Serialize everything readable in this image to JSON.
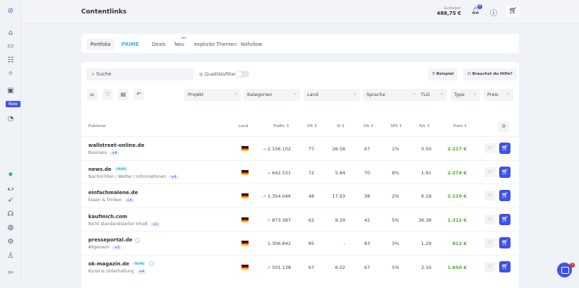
{
  "sidebar": {
    "new_badge": "New",
    "rating": "4.7",
    "icons": [
      "logo-icon",
      "home-icon",
      "folder-icon",
      "list-icon",
      "sparkle-icon",
      "chart-icon",
      "document-icon",
      "trustpilot-star-icon",
      "rocket-icon",
      "headset-icon",
      "globe-icon",
      "settings-icon",
      "user-icon",
      "logout-icon"
    ]
  },
  "header": {
    "title": "Contentlinks",
    "balance_label": "Guthaben",
    "balance": "488,75 €",
    "notifications": "0"
  },
  "tabs": [
    {
      "label": "Portfolio"
    },
    {
      "label": "PRIME"
    },
    {
      "label": "Deals"
    },
    {
      "label": "Neu",
      "badge": "NEU"
    },
    {
      "label": "explizite Themen"
    },
    {
      "label": "Nofollow"
    }
  ],
  "filters": {
    "search_placeholder": "Suche",
    "quality_filter": "Qualitätsfilter",
    "example": "Beispiel",
    "help": "Brauchst du Hilfe?",
    "dropdowns": [
      "Projekt",
      "Kategorien",
      "Land",
      "Sprache",
      "TLD",
      "Type",
      "Preis"
    ]
  },
  "table": {
    "headers": [
      "Publisher",
      "Land",
      "Traffic",
      "DR",
      "SI",
      "DA",
      "SPS",
      "R/L",
      "Preis"
    ],
    "rows": [
      {
        "publisher": "wallstreet-online.de",
        "category": "Business",
        "plus": "+4",
        "prime": false,
        "info": false,
        "trend": "flat",
        "traffic": "2.156.102",
        "dr": "77",
        "si": "26.58",
        "da": "67",
        "sps": "1%",
        "rl": "0.50",
        "price": "2.217 €"
      },
      {
        "publisher": "news.de",
        "category": "Nachrichten / Wetter / Informationen",
        "plus": "+4",
        "prime": true,
        "info": false,
        "trend": "flat",
        "traffic": "642.531",
        "dr": "72",
        "si": "5.84",
        "da": "70",
        "sps": "8%",
        "rl": "1.91",
        "price": "2.274 €"
      },
      {
        "publisher": "einfachmalene.de",
        "category": "Essen & Trinken",
        "plus": "+4",
        "prime": false,
        "info": false,
        "trend": "up",
        "traffic": "1.354.046",
        "dr": "48",
        "si": "17.93",
        "da": "38",
        "sps": "2%",
        "rl": "6.18",
        "price": "2.119 €"
      },
      {
        "publisher": "kaufmich.com",
        "category": "Nicht standardisierter Inhalt",
        "plus": "+1",
        "prime": false,
        "info": false,
        "trend": "up",
        "traffic": "873.387",
        "dr": "62",
        "si": "9.29",
        "da": "42",
        "sps": "5%",
        "rl": "36.38",
        "price": "1.312 €"
      },
      {
        "publisher": "presseportal.de",
        "category": "Allgemein",
        "plus": "+3",
        "prime": false,
        "info": true,
        "trend": "none",
        "traffic": "1.306.842",
        "dr": "85",
        "si": "-",
        "da": "83",
        "sps": "3%",
        "rl": "1.29",
        "price": "812 €"
      },
      {
        "publisher": "ok-magazin.de",
        "category": "Kunst & Unterhaltung",
        "plus": "+4",
        "prime": true,
        "info": true,
        "trend": "up",
        "traffic": "501.138",
        "dr": "67",
        "si": "6.02",
        "da": "67",
        "sps": "5%",
        "rl": "2.16",
        "price": "1.650 €"
      }
    ]
  },
  "prime_badge": "PRIME",
  "chat_badge": "1",
  "colors": {
    "accent": "#3f51e6",
    "price": "#3fae29"
  }
}
